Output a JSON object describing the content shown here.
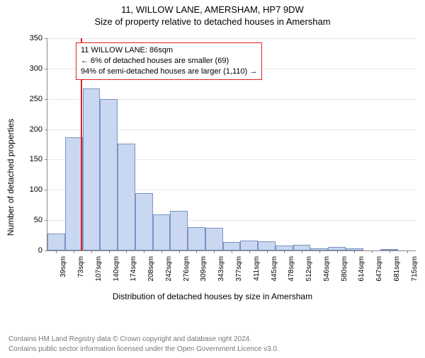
{
  "title": "11, WILLOW LANE, AMERSHAM, HP7 9DW",
  "subtitle": "Size of property relative to detached houses in Amersham",
  "ylabel": "Number of detached properties",
  "xlabel": "Distribution of detached houses by size in Amersham",
  "footer1": "Contains HM Land Registry data © Crown copyright and database right 2024.",
  "footer2": "Contains public sector information licensed under the Open Government Licence v3.0.",
  "annot": {
    "line1": "11 WILLOW LANE: 86sqm",
    "line2": "← 6% of detached houses are smaller (69)",
    "line3": "94% of semi-detached houses are larger (1,110) →"
  },
  "chart": {
    "type": "histogram",
    "ylim": [
      0,
      350
    ],
    "ytick_step": 50,
    "bar_fill": "#c9d7f0",
    "bar_border": "#7a92c4",
    "ref_color": "#d22",
    "ref_x": 86,
    "grid_color": "#e8e8e8",
    "background": "#ffffff",
    "label_fontsize": 12,
    "tick_fontsize": 11,
    "bins": [
      {
        "label": "39sqm",
        "v": 28
      },
      {
        "label": "73sqm",
        "v": 187
      },
      {
        "label": "107sqm",
        "v": 267
      },
      {
        "label": "140sqm",
        "v": 250
      },
      {
        "label": "174sqm",
        "v": 176
      },
      {
        "label": "208sqm",
        "v": 94
      },
      {
        "label": "242sqm",
        "v": 60
      },
      {
        "label": "276sqm",
        "v": 65
      },
      {
        "label": "309sqm",
        "v": 38
      },
      {
        "label": "343sqm",
        "v": 37
      },
      {
        "label": "377sqm",
        "v": 14
      },
      {
        "label": "411sqm",
        "v": 16
      },
      {
        "label": "445sqm",
        "v": 15
      },
      {
        "label": "478sqm",
        "v": 8
      },
      {
        "label": "512sqm",
        "v": 9
      },
      {
        "label": "546sqm",
        "v": 3
      },
      {
        "label": "580sqm",
        "v": 6
      },
      {
        "label": "614sqm",
        "v": 3
      },
      {
        "label": "647sqm",
        "v": 0
      },
      {
        "label": "681sqm",
        "v": 2
      },
      {
        "label": "715sqm",
        "v": 0
      }
    ]
  }
}
